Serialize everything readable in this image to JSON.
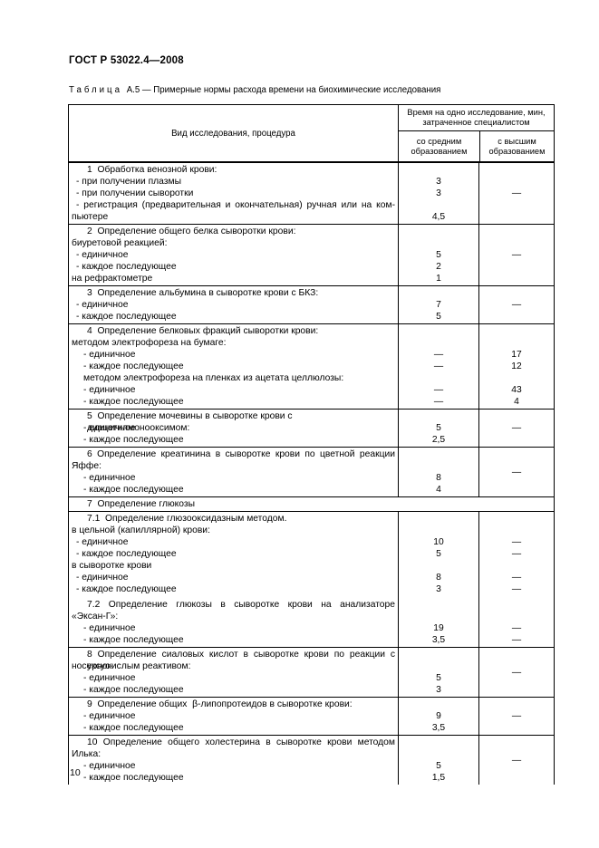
{
  "doc": {
    "header": "ГОСТ Р 53022.4—2008",
    "page_number": "10"
  },
  "caption": {
    "label": "Таблица",
    "rest": "А.5 — Примерные нормы расхода времени на биохимические исследования"
  },
  "table": {
    "col1_header": "Вид исследования, процедура",
    "col_group_header": "Время на одно исследование, мин, затраченное специалистом",
    "sub_headers": [
      "со средним образованием",
      "с высшим образованием"
    ],
    "dash": "—",
    "sections": [
      {
        "dash_center": true,
        "lines": [
          {
            "t": "1  Обработка венозной крови:",
            "ind": 2
          },
          {
            "t": "- при получении плазмы",
            "ind": 1,
            "m": "3"
          },
          {
            "t": "- при получении сыворотки",
            "ind": 1,
            "m": "3"
          },
          {
            "t": "- регистрация (предварительная и окончательная) ручная или на ком-",
            "ind": 1,
            "j": true
          },
          {
            "t": "пьютере",
            "ind": 0,
            "m": "4,5"
          }
        ]
      },
      {
        "dash_center": true,
        "lines": [
          {
            "t": "2  Определение общего белка сыворотки крови:",
            "ind": 2
          },
          {
            "t": "биуретовой реакцией:",
            "ind": 0
          },
          {
            "t": "- единичное",
            "ind": 1,
            "m": "5"
          },
          {
            "t": "- каждое последующее",
            "ind": 1,
            "m": "2"
          },
          {
            "t": "на рефрактометре",
            "ind": 0,
            "m": "1"
          }
        ]
      },
      {
        "dash_center": true,
        "lines": [
          {
            "t": "3  Определение альбумина в сыворотке крови с БКЗ:",
            "ind": 2
          },
          {
            "t": "- единичное",
            "ind": 1,
            "m": "7"
          },
          {
            "t": "- каждое последующее",
            "ind": 1,
            "m": "5"
          }
        ]
      },
      {
        "dash_center": false,
        "lines": [
          {
            "t": "4  Определение белковых фракций сыворотки крови:",
            "ind": 2
          },
          {
            "t": "методом электрофореза на бумаге:",
            "ind": 0
          },
          {
            "t": "- единичное",
            "ind": 3,
            "m": "—",
            "h": "17"
          },
          {
            "t": "- каждое последующее",
            "ind": 3,
            "m": "—",
            "h": "12"
          },
          {
            "t": "методом электрофореза на пленках из ацетата целлюлозы:",
            "ind": 3
          },
          {
            "t": "- единичное",
            "ind": 3,
            "m": "—",
            "h": "43"
          },
          {
            "t": "- каждое последующее",
            "ind": 3,
            "m": "—",
            "h": "4"
          }
        ]
      },
      {
        "dash_center": true,
        "lines": [
          {
            "t": "5  Определение мочевины в сыворотке крови с диацетилмонооксимом:",
            "ind": 2
          },
          {
            "t": "- единичное",
            "ind": 3,
            "m": "5"
          },
          {
            "t": "- каждое последующее",
            "ind": 3,
            "m": "2,5"
          }
        ]
      },
      {
        "dash_center": true,
        "lines": [
          {
            "t": "6  Определение креатинина в сыворотке крови по цветной реакции",
            "ind": 2,
            "j": true
          },
          {
            "t": "Яффе:",
            "ind": 0
          },
          {
            "t": "- единичное",
            "ind": 3,
            "m": "8"
          },
          {
            "t": "- каждое последующее",
            "ind": 3,
            "m": "4"
          }
        ]
      },
      {
        "span": true,
        "lines": [
          {
            "t": "7  Определение глюкозы",
            "ind": 2
          }
        ]
      },
      {
        "dash_center": false,
        "lines": [
          {
            "t": "7.1  Определение глюзооксидазным методом.",
            "ind": 2
          },
          {
            "t": "в цельной (капиллярной) крови:",
            "ind": 0
          },
          {
            "t": "- единичное",
            "ind": 1,
            "m": "10",
            "h": "—"
          },
          {
            "t": "- каждое последующее",
            "ind": 1,
            "m": "5",
            "h": "—"
          },
          {
            "t": "в сыворотке крови",
            "ind": 0
          },
          {
            "t": "- единичное",
            "ind": 1,
            "m": "8",
            "h": "—"
          },
          {
            "t": "- каждое последующее",
            "ind": 1,
            "m": "3",
            "h": "—"
          },
          {
            "t": "7.2 Определение глюкозы в сыворотке крови на анализаторе",
            "ind": 2,
            "j": true,
            "gap": true
          },
          {
            "t": "«Эксан-Г»:",
            "ind": 0
          },
          {
            "t": "- единичное",
            "ind": 3,
            "m": "19",
            "h": "—"
          },
          {
            "t": "- каждое последующее",
            "ind": 3,
            "m": "3,5",
            "h": "—"
          }
        ]
      },
      {
        "dash_center": true,
        "lines": [
          {
            "t": "8  Определение сиаловых кислот в сыворотке крови по реакции с уксус-",
            "ind": 2,
            "j": true
          },
          {
            "t": "носернокислым реактивом:",
            "ind": 0
          },
          {
            "t": "- единичное",
            "ind": 3,
            "m": "5"
          },
          {
            "t": "- каждое последующее",
            "ind": 3,
            "m": "3"
          }
        ]
      },
      {
        "dash_center": true,
        "lines": [
          {
            "t": "9  Определение общих  β-липопротеидов в сыворотке крови:",
            "ind": 2
          },
          {
            "t": "- единичное",
            "ind": 3,
            "m": "9"
          },
          {
            "t": "- каждое последующее",
            "ind": 3,
            "m": "3,5"
          }
        ]
      },
      {
        "dash_center": true,
        "lines": [
          {
            "t": "10  Определение общего холестерина в сыворотке крови методом",
            "ind": 2,
            "j": true
          },
          {
            "t": "Илька:",
            "ind": 0
          },
          {
            "t": "- единичное",
            "ind": 3,
            "m": "5"
          },
          {
            "t": "- каждое последующее",
            "ind": 3,
            "m": "1,5"
          }
        ]
      }
    ]
  }
}
